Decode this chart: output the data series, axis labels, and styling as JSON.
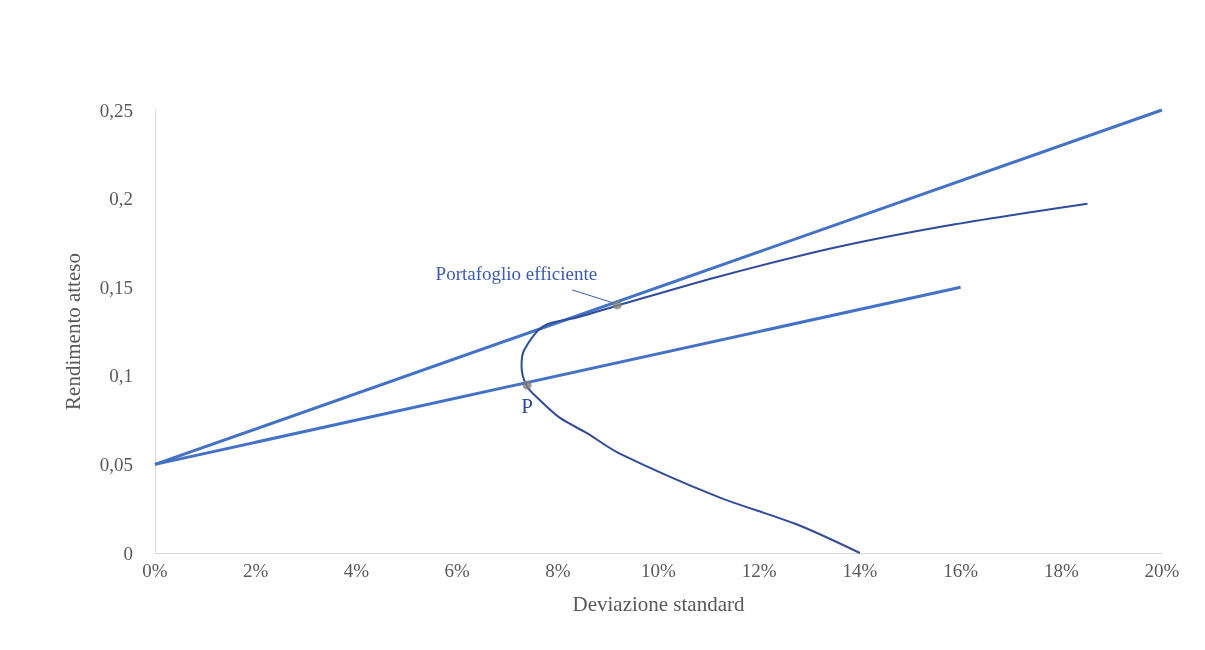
{
  "chart_data": {
    "type": "line",
    "xlabel": "Deviazione standard",
    "ylabel": "Rendimento atteso",
    "xlim": [
      0,
      20
    ],
    "xticks": [
      {
        "value": 0,
        "label": "0%"
      },
      {
        "value": 2,
        "label": "2%"
      },
      {
        "value": 4,
        "label": "4%"
      },
      {
        "value": 6,
        "label": "6%"
      },
      {
        "value": 8,
        "label": "8%"
      },
      {
        "value": 10,
        "label": "10%"
      },
      {
        "value": 12,
        "label": "12%"
      },
      {
        "value": 14,
        "label": "14%"
      },
      {
        "value": 16,
        "label": "16%"
      },
      {
        "value": 18,
        "label": "18%"
      },
      {
        "value": 20,
        "label": "20%"
      }
    ],
    "ylim": [
      0,
      0.25
    ],
    "yticks": [
      0,
      {
        "value": 0.05,
        "label": "0,05"
      },
      {
        "value": 0.1,
        "label": "0,1"
      },
      {
        "value": 0.15,
        "label": "0,15"
      },
      {
        "value": 0.2,
        "label": "0,2"
      },
      {
        "value": 0.25,
        "label": "0,25"
      }
    ],
    "series": [
      {
        "color": "#4472c4",
        "x": [
          0,
          20
        ],
        "values": [
          0.05,
          0.25
        ]
      },
      {
        "color": "#4472c4",
        "x": [
          0,
          16
        ],
        "values": [
          0.05,
          0.15
        ]
      },
      {
        "color": "#2f4b9a",
        "x": [
          14,
          12.74,
          11.17,
          9.21,
          8.58,
          8.03,
          7.63,
          7.38,
          7.28,
          7.33,
          7.71,
          8.42,
          9.17,
          11.17,
          13.53,
          15.89,
          18.52
        ],
        "values": [
          0,
          0.0162,
          0.0318,
          0.0564,
          0.0676,
          0.0765,
          0.0866,
          0.0944,
          0.1055,
          0.1144,
          0.1279,
          0.1332,
          0.1395,
          0.1558,
          0.1725,
          0.1855,
          0.1971
        ]
      },
      {
        "type": "scatter",
        "marker": "circle",
        "color": "#7f7f7f",
        "x": [
          9.18,
          7.39
        ],
        "values": [
          0.14,
          0.0948
        ]
      }
    ],
    "annotations": [
      {
        "text": "Portafoglio efficiente",
        "x": 9.18,
        "y": 0.14
      },
      {
        "text": "P",
        "x": 7.39,
        "y": 0.0948
      }
    ],
    "marker": "none",
    "grid": false
  }
}
